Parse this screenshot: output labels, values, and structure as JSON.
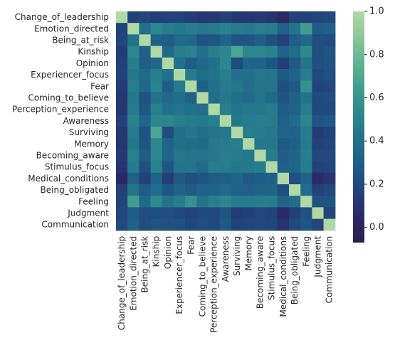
{
  "chart_data": {
    "type": "heatmap",
    "title": "",
    "xlabel": "",
    "ylabel": "",
    "labels": [
      "Change_of_leadership",
      "Emotion_directed",
      "Being_at_risk",
      "Kinship",
      "Opinion",
      "Experiencer_focus",
      "Fear",
      "Coming_to_believe",
      "Perception_experience",
      "Awareness",
      "Surviving",
      "Memory",
      "Becoming_aware",
      "Stimulus_focus",
      "Medical_conditions",
      "Being_obligated",
      "Feeling",
      "Judgment",
      "Communication"
    ],
    "matrix": [
      [
        1.0,
        0.17,
        0.18,
        0.15,
        0.16,
        0.17,
        0.14,
        0.12,
        0.12,
        0.16,
        0.12,
        0.11,
        0.13,
        0.1,
        0.04,
        0.16,
        0.17,
        0.18,
        0.2
      ],
      [
        0.17,
        1.0,
        0.4,
        0.52,
        0.47,
        0.44,
        0.47,
        0.44,
        0.46,
        0.5,
        0.45,
        0.44,
        0.48,
        0.46,
        0.31,
        0.42,
        0.65,
        0.3,
        0.32
      ],
      [
        0.18,
        0.4,
        1.0,
        0.32,
        0.3,
        0.36,
        0.35,
        0.25,
        0.27,
        0.33,
        0.25,
        0.26,
        0.3,
        0.23,
        0.16,
        0.29,
        0.36,
        0.22,
        0.22
      ],
      [
        0.15,
        0.52,
        0.32,
        1.0,
        0.35,
        0.47,
        0.5,
        0.4,
        0.48,
        0.52,
        0.68,
        0.52,
        0.52,
        0.5,
        0.33,
        0.38,
        0.53,
        0.22,
        0.26
      ],
      [
        0.16,
        0.47,
        0.3,
        0.35,
        1.0,
        0.4,
        0.3,
        0.35,
        0.4,
        0.52,
        0.21,
        0.33,
        0.33,
        0.27,
        0.15,
        0.27,
        0.42,
        0.23,
        0.25
      ],
      [
        0.17,
        0.44,
        0.36,
        0.47,
        0.4,
        1.0,
        0.46,
        0.38,
        0.41,
        0.48,
        0.4,
        0.4,
        0.43,
        0.42,
        0.28,
        0.33,
        0.47,
        0.2,
        0.24
      ],
      [
        0.14,
        0.47,
        0.35,
        0.5,
        0.3,
        0.46,
        1.0,
        0.32,
        0.4,
        0.45,
        0.43,
        0.39,
        0.42,
        0.42,
        0.23,
        0.28,
        0.58,
        0.17,
        0.19
      ],
      [
        0.12,
        0.44,
        0.25,
        0.4,
        0.35,
        0.38,
        0.32,
        1.0,
        0.39,
        0.44,
        0.39,
        0.36,
        0.41,
        0.37,
        0.26,
        0.32,
        0.42,
        0.2,
        0.22
      ],
      [
        0.12,
        0.46,
        0.27,
        0.48,
        0.4,
        0.41,
        0.4,
        0.39,
        1.0,
        0.48,
        0.42,
        0.44,
        0.44,
        0.46,
        0.3,
        0.33,
        0.48,
        0.19,
        0.2
      ],
      [
        0.16,
        0.5,
        0.33,
        0.52,
        0.52,
        0.48,
        0.45,
        0.44,
        0.48,
        1.0,
        0.44,
        0.46,
        0.47,
        0.46,
        0.31,
        0.37,
        0.52,
        0.26,
        0.28
      ],
      [
        0.12,
        0.45,
        0.25,
        0.68,
        0.21,
        0.4,
        0.43,
        0.39,
        0.42,
        0.44,
        1.0,
        0.47,
        0.46,
        0.44,
        0.34,
        0.32,
        0.46,
        0.14,
        0.17
      ],
      [
        0.11,
        0.44,
        0.26,
        0.52,
        0.33,
        0.4,
        0.39,
        0.36,
        0.44,
        0.46,
        0.47,
        1.0,
        0.44,
        0.44,
        0.28,
        0.31,
        0.45,
        0.16,
        0.18
      ],
      [
        0.13,
        0.48,
        0.3,
        0.52,
        0.33,
        0.43,
        0.42,
        0.41,
        0.44,
        0.47,
        0.46,
        0.44,
        1.0,
        0.47,
        0.3,
        0.33,
        0.47,
        0.19,
        0.2
      ],
      [
        0.1,
        0.46,
        0.23,
        0.5,
        0.27,
        0.42,
        0.42,
        0.37,
        0.46,
        0.46,
        0.44,
        0.44,
        0.47,
        1.0,
        0.31,
        0.34,
        0.46,
        0.17,
        0.18
      ],
      [
        0.04,
        0.31,
        0.16,
        0.33,
        0.15,
        0.28,
        0.23,
        0.26,
        0.3,
        0.31,
        0.34,
        0.28,
        0.3,
        0.31,
        1.0,
        0.23,
        0.33,
        0.05,
        0.1
      ],
      [
        0.16,
        0.42,
        0.29,
        0.38,
        0.27,
        0.33,
        0.28,
        0.32,
        0.33,
        0.37,
        0.32,
        0.31,
        0.33,
        0.34,
        0.23,
        1.0,
        0.38,
        0.16,
        0.2
      ],
      [
        0.17,
        0.65,
        0.36,
        0.53,
        0.42,
        0.47,
        0.58,
        0.42,
        0.48,
        0.52,
        0.46,
        0.45,
        0.47,
        0.46,
        0.33,
        0.38,
        1.0,
        0.24,
        0.26
      ],
      [
        0.18,
        0.3,
        0.22,
        0.22,
        0.23,
        0.2,
        0.17,
        0.2,
        0.19,
        0.26,
        0.14,
        0.16,
        0.19,
        0.17,
        0.05,
        0.16,
        0.24,
        1.0,
        0.18
      ],
      [
        0.2,
        0.32,
        0.22,
        0.26,
        0.25,
        0.24,
        0.19,
        0.22,
        0.2,
        0.28,
        0.17,
        0.18,
        0.2,
        0.18,
        0.1,
        0.2,
        0.26,
        0.18,
        1.0
      ]
    ],
    "vmin": -0.07,
    "vmax": 1.0,
    "colorbar_ticks": [
      "0.0",
      "0.2",
      "0.4",
      "0.6",
      "0.8",
      "1.0"
    ],
    "colormap": [
      "#2c1e50",
      "#2a2a67",
      "#22427a",
      "#1f5b86",
      "#22718b",
      "#2b888d",
      "#3f9d8f",
      "#60b391",
      "#8cc699",
      "#b0d9a6"
    ]
  }
}
